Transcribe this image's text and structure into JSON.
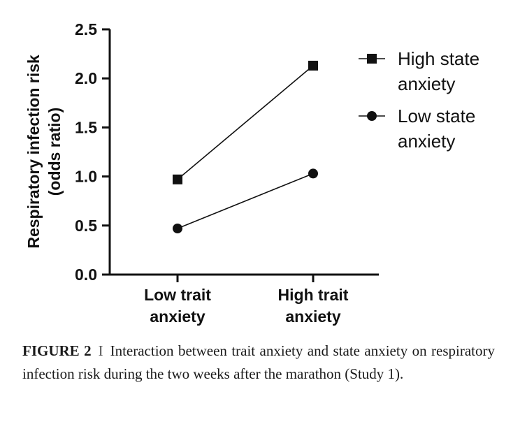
{
  "chart_data": {
    "type": "line",
    "categories": [
      [
        "Low trait",
        "anxiety"
      ],
      [
        "High trait",
        "anxiety"
      ]
    ],
    "ylabel": [
      "Respiratory infection risk",
      "(odds ratio)"
    ],
    "ylim": [
      0,
      2.5
    ],
    "yticks": [
      "0.0",
      "0.5",
      "1.0",
      "1.5",
      "2.0",
      "2.5"
    ],
    "grid": false,
    "legend_position": "top-right",
    "series": [
      {
        "name": [
          "High state",
          "anxiety"
        ],
        "marker": "square",
        "values": [
          0.97,
          2.13
        ]
      },
      {
        "name": [
          "Low state",
          "anxiety"
        ],
        "marker": "circle",
        "values": [
          0.47,
          1.03
        ]
      }
    ],
    "colors": {
      "ink": "#111111"
    }
  },
  "caption": {
    "label": "FIGURE 2",
    "separator": "I",
    "text": "Interaction between trait anxiety and state anxiety on respiratory infection risk during the two weeks after the marathon (Study 1)."
  }
}
